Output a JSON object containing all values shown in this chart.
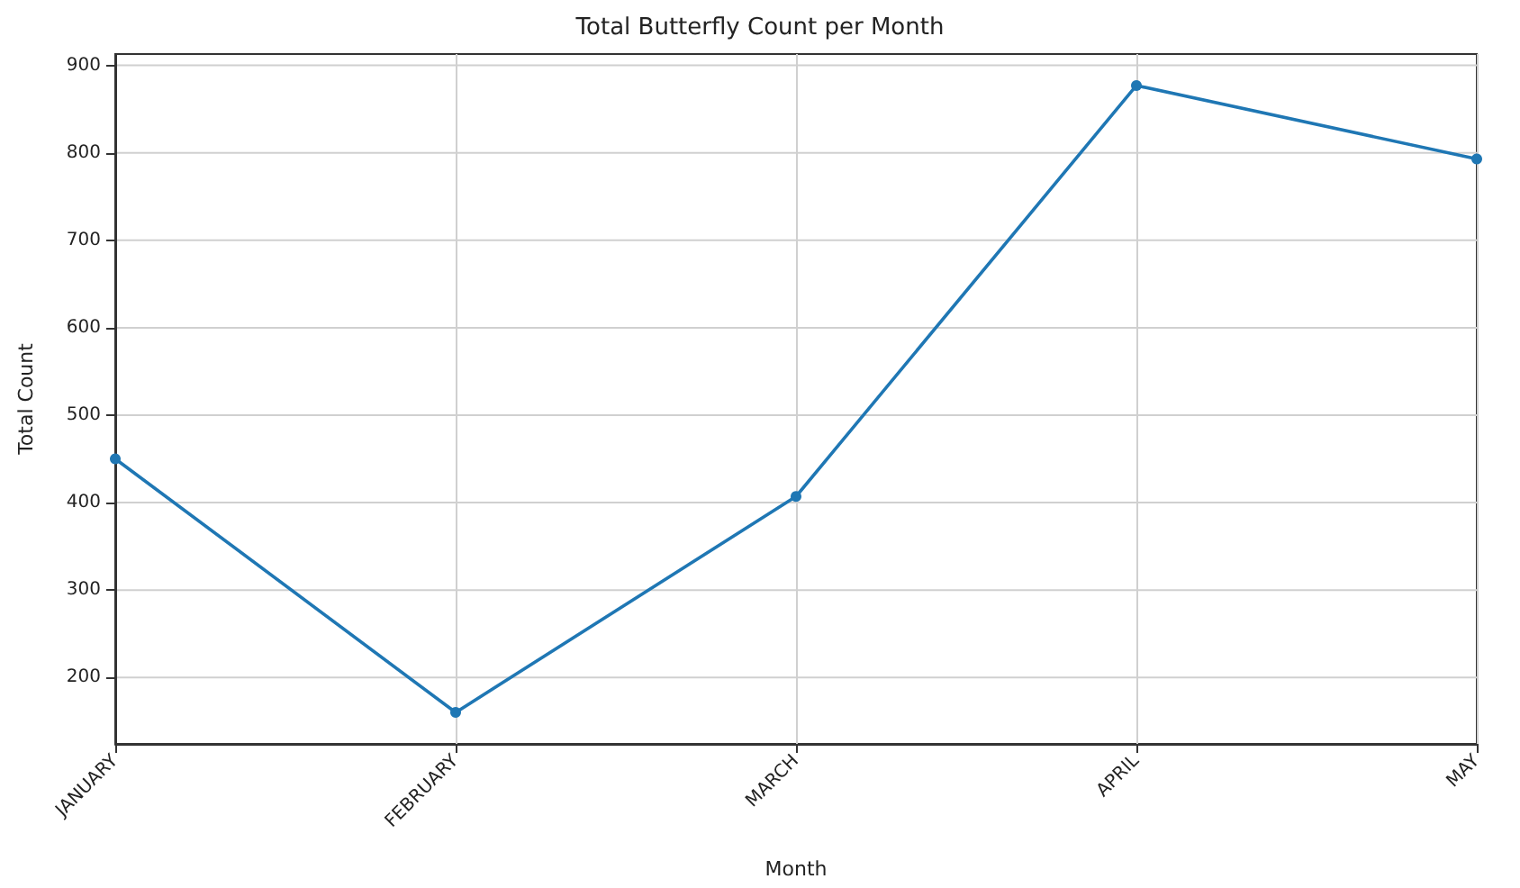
{
  "chart_data": {
    "type": "line",
    "title": "Total Butterfly Count per Month",
    "xlabel": "Month",
    "ylabel": "Total Count",
    "categories": [
      "JANUARY",
      "FEBRUARY",
      "MARCH",
      "APRIL",
      "MAY"
    ],
    "series": [
      {
        "color": "#1f77b4",
        "values": [
          450,
          160,
          407,
          877,
          793
        ]
      }
    ],
    "ylim": [
      124,
      913
    ],
    "yticks": [
      200,
      300,
      400,
      500,
      600,
      700,
      800,
      900
    ],
    "grid": true,
    "marker": "circle",
    "line_style": "solid"
  }
}
